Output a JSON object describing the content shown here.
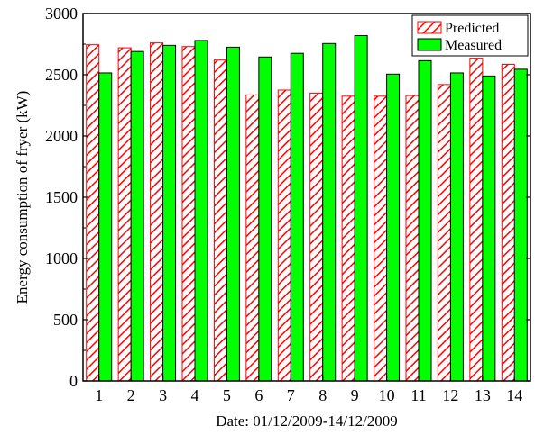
{
  "chart_data": {
    "type": "bar",
    "xlabel": "Date: 01/12/2009-14/12/2009",
    "ylabel": "Energy consumption of fryer (kW)",
    "categories": [
      "1",
      "2",
      "3",
      "4",
      "5",
      "6",
      "7",
      "8",
      "9",
      "10",
      "11",
      "12",
      "13",
      "14"
    ],
    "ylim": [
      0,
      3000
    ],
    "yticks": [
      0,
      500,
      1000,
      1500,
      2000,
      2500,
      3000
    ],
    "grid": false,
    "legend_position": "top-right",
    "series": [
      {
        "name": "Predicted",
        "fill": "hatched",
        "color": "#ff0000",
        "values": [
          2745,
          2720,
          2760,
          2730,
          2620,
          2335,
          2375,
          2350,
          2325,
          2325,
          2330,
          2420,
          2635,
          2585
        ]
      },
      {
        "name": "Measured",
        "fill": "solid",
        "color": "#00ff00",
        "values": [
          2515,
          2690,
          2740,
          2780,
          2725,
          2645,
          2675,
          2755,
          2820,
          2505,
          2615,
          2515,
          2490,
          2545
        ]
      }
    ]
  }
}
